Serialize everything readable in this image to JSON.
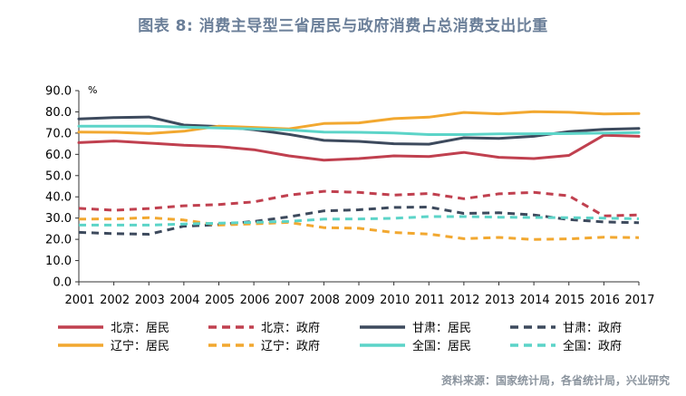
{
  "title": "图表 8:  消费主导型三省居民与政府消费占总消费支出比重",
  "source": "资料来源：国家统计局，各省统计局，兴业研究",
  "chart_data": {
    "type": "line",
    "unit_label": "%",
    "x": [
      "2001",
      "2002",
      "2003",
      "2004",
      "2005",
      "2006",
      "2007",
      "2008",
      "2009",
      "2010",
      "2011",
      "2012",
      "2013",
      "2014",
      "2015",
      "2016",
      "2017"
    ],
    "ylim": [
      0,
      90
    ],
    "yticks": [
      "0.0",
      "10.0",
      "20.0",
      "30.0",
      "40.0",
      "50.0",
      "60.0",
      "70.0",
      "80.0",
      "90.0"
    ],
    "grid": false,
    "legend_position": "bottom",
    "series": [
      {
        "name": "北京：居民",
        "color": "#c0404f",
        "dash": false,
        "values": [
          65.5,
          66.3,
          65.3,
          64.3,
          63.7,
          62.2,
          59.3,
          57.3,
          58.0,
          59.3,
          59.0,
          60.9,
          58.6,
          58.0,
          59.5,
          69.0,
          68.5
        ]
      },
      {
        "name": "北京：政府",
        "color": "#c0404f",
        "dash": true,
        "values": [
          34.6,
          33.7,
          34.5,
          35.8,
          36.4,
          37.6,
          40.8,
          42.6,
          42.1,
          40.8,
          41.6,
          39.1,
          41.4,
          42.1,
          40.5,
          31.0,
          31.5
        ]
      },
      {
        "name": "甘肃：居民",
        "color": "#3d4a5d",
        "dash": false,
        "values": [
          76.7,
          77.3,
          77.6,
          73.8,
          73.1,
          71.6,
          69.4,
          66.6,
          66.1,
          65.0,
          64.8,
          67.8,
          67.5,
          68.5,
          70.7,
          71.8,
          72.2
        ]
      },
      {
        "name": "甘肃：政府",
        "color": "#3d4a5d",
        "dash": true,
        "values": [
          23.3,
          22.7,
          22.4,
          26.2,
          26.9,
          28.4,
          30.6,
          33.4,
          33.9,
          35.0,
          35.2,
          32.2,
          32.5,
          31.5,
          29.3,
          28.2,
          27.8
        ]
      },
      {
        "name": "辽宁：居民",
        "color": "#f2a830",
        "dash": false,
        "values": [
          70.5,
          70.4,
          69.8,
          70.9,
          73.3,
          72.7,
          72.0,
          74.5,
          74.8,
          76.8,
          77.5,
          79.7,
          79.1,
          80.1,
          79.8,
          79.0,
          79.2
        ]
      },
      {
        "name": "辽宁：政府",
        "color": "#f2a830",
        "dash": true,
        "values": [
          29.5,
          29.6,
          30.2,
          29.1,
          26.7,
          27.3,
          28.0,
          25.5,
          25.2,
          23.2,
          22.5,
          20.3,
          20.9,
          19.9,
          20.2,
          21.0,
          20.8
        ]
      },
      {
        "name": "全国：居民",
        "color": "#5cd4c8",
        "dash": false,
        "values": [
          73.3,
          73.3,
          73.3,
          72.8,
          72.4,
          72.0,
          71.5,
          70.5,
          70.4,
          70.1,
          69.3,
          69.3,
          69.6,
          69.7,
          69.8,
          70.0,
          70.3
        ]
      },
      {
        "name": "全国：政府",
        "color": "#5cd4c8",
        "dash": true,
        "values": [
          26.7,
          26.7,
          26.7,
          27.2,
          27.6,
          28.0,
          28.5,
          29.5,
          29.6,
          29.9,
          30.7,
          30.7,
          30.4,
          30.3,
          30.2,
          30.0,
          29.7
        ]
      }
    ]
  }
}
